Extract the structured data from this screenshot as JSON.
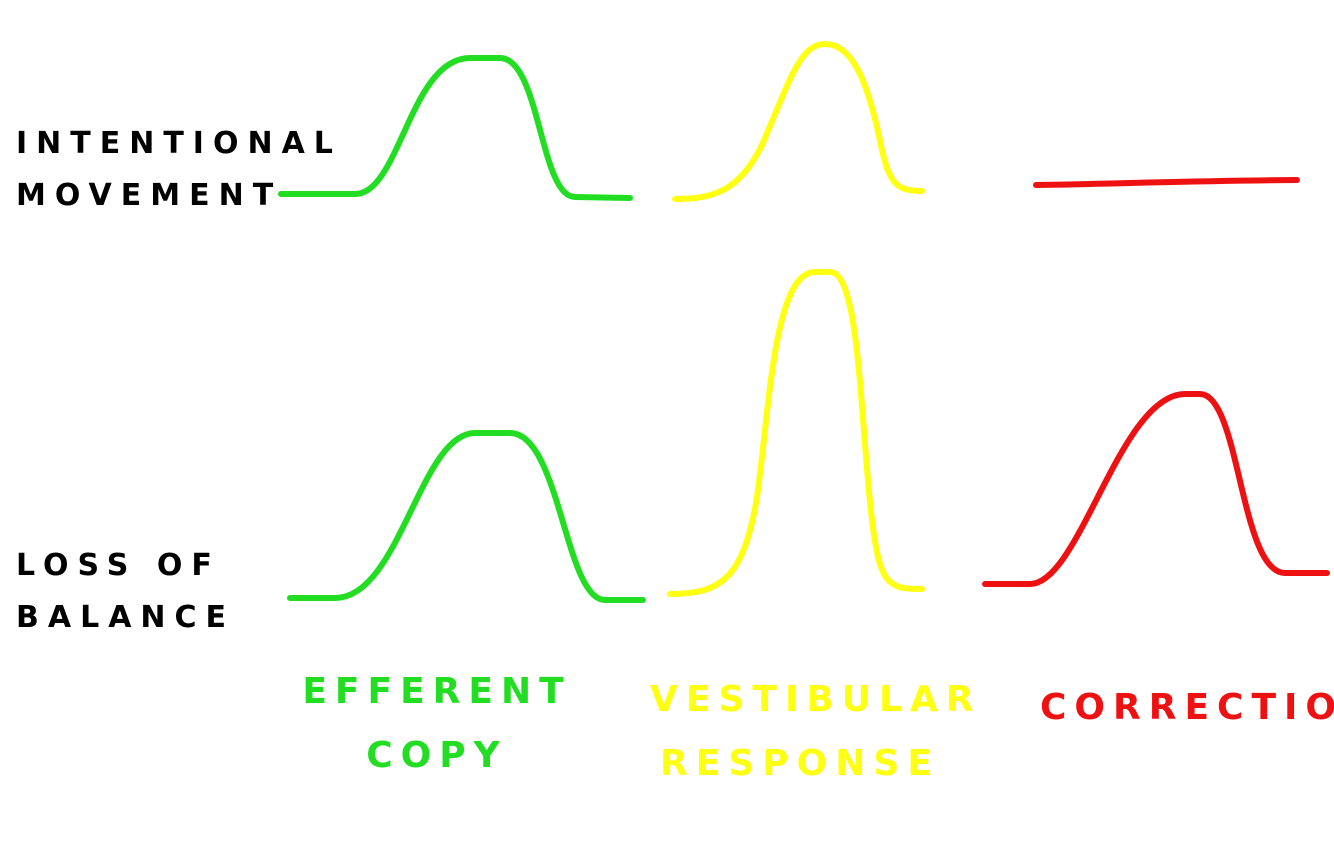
{
  "rows": [
    {
      "id": "intentional",
      "lines": [
        "INTENTIONAL",
        "MOVEMENT"
      ]
    },
    {
      "id": "balance",
      "lines": [
        "LOSS OF",
        "BALANCE"
      ]
    }
  ],
  "columns": [
    {
      "id": "efferent",
      "lines": [
        "EFFERENT",
        "COPY"
      ],
      "color": "#22dd22"
    },
    {
      "id": "vestibular",
      "lines": [
        "VESTIBULAR",
        "RESPONSE"
      ],
      "color": "#ffff11"
    },
    {
      "id": "correction",
      "lines": [
        "CORRECTION"
      ],
      "color": "#ee1111"
    }
  ],
  "curves": [
    {
      "row": "intentional",
      "column": "efferent",
      "shape": "bump",
      "level": 1.0
    },
    {
      "row": "intentional",
      "column": "vestibular",
      "shape": "bump",
      "level": 1.0
    },
    {
      "row": "intentional",
      "column": "correction",
      "shape": "flat",
      "level": 0.0
    },
    {
      "row": "balance",
      "column": "efferent",
      "shape": "bump",
      "level": 1.0
    },
    {
      "row": "balance",
      "column": "vestibular",
      "shape": "bump",
      "level": 2.0
    },
    {
      "row": "balance",
      "column": "correction",
      "shape": "bump",
      "level": 1.25
    }
  ]
}
